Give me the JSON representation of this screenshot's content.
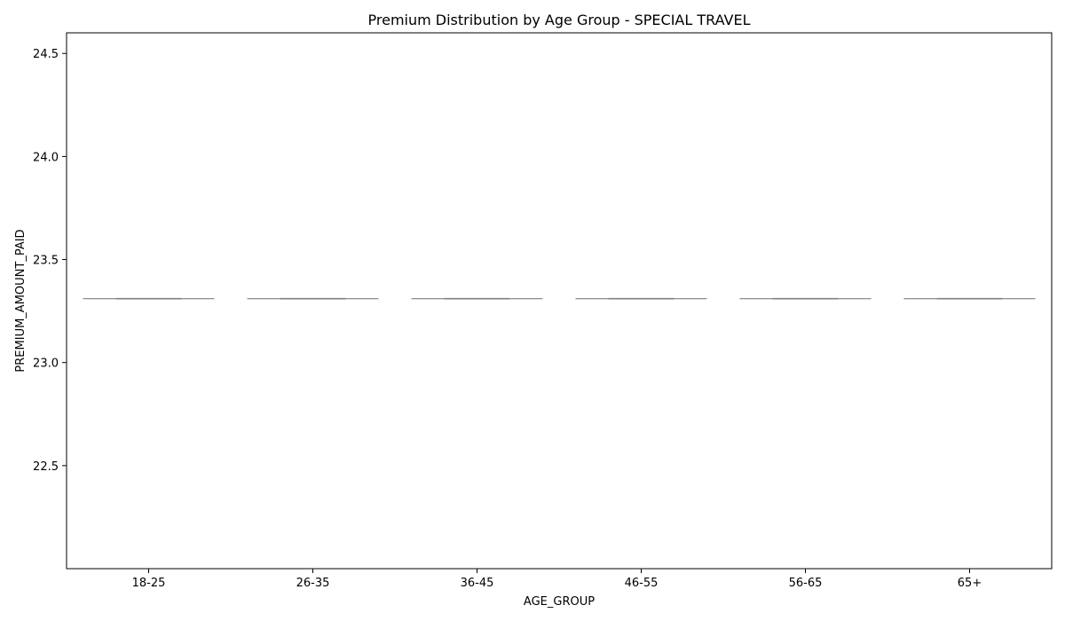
{
  "chart_data": {
    "type": "box",
    "title": "Premium Distribution by Age Group - SPECIAL TRAVEL",
    "xlabel": "AGE_GROUP",
    "ylabel": "PREMIUM_AMOUNT_PAID",
    "categories": [
      "18-25",
      "26-35",
      "36-45",
      "46-55",
      "56-65",
      "65+"
    ],
    "values": [
      23.31,
      23.31,
      23.31,
      23.31,
      23.31,
      23.31
    ],
    "ylim": [
      22.0,
      24.6
    ],
    "yticks": [
      22.5,
      23.0,
      23.5,
      24.0,
      24.5
    ],
    "ytick_labels": [
      "22.5",
      "23.0",
      "23.5",
      "24.0",
      "24.5"
    ],
    "grid": false,
    "box_color": "#7f7f7f"
  }
}
